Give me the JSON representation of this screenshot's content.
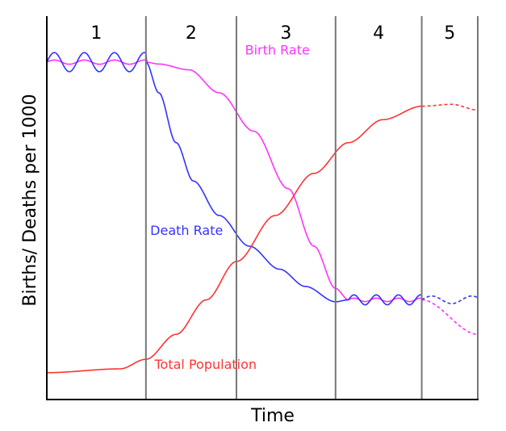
{
  "colors": {
    "birth_rate": "#ff33ff",
    "death_rate": "#3333ff",
    "total_population": "#ff3333",
    "frame": "#000000",
    "dividers": "#777777"
  },
  "chart_data": {
    "type": "line",
    "xlabel": "Time",
    "ylabel": "Births/ Deaths per 1000",
    "stages": [
      "1",
      "2",
      "3",
      "4",
      "5"
    ],
    "stage_boundaries": [
      0,
      0.23,
      0.44,
      0.67,
      0.87,
      1.0
    ],
    "grid": false,
    "legend": "inline labels",
    "series": [
      {
        "key": "birth_rate",
        "name": "Birth Rate",
        "label_at": [
          0.46,
          0.9
        ],
        "points": [
          [
            0.0,
            0.88
          ],
          [
            0.23,
            0.88
          ],
          [
            0.26,
            0.875
          ],
          [
            0.33,
            0.86
          ],
          [
            0.4,
            0.8
          ],
          [
            0.48,
            0.7
          ],
          [
            0.56,
            0.55
          ],
          [
            0.62,
            0.4
          ],
          [
            0.67,
            0.29
          ],
          [
            0.7,
            0.26
          ],
          [
            0.87,
            0.26
          ]
        ],
        "oscillate": [
          [
            0.0,
            0.23,
            0.0055
          ],
          [
            0.7,
            0.87,
            0.0045
          ]
        ],
        "dashed_tail": [
          [
            0.87,
            0.26
          ],
          [
            1.0,
            0.17
          ]
        ]
      },
      {
        "key": "death_rate",
        "name": "Death Rate",
        "label_at": [
          0.24,
          0.43
        ],
        "points": [
          [
            0.0,
            0.88
          ],
          [
            0.23,
            0.88
          ],
          [
            0.26,
            0.8
          ],
          [
            0.3,
            0.67
          ],
          [
            0.34,
            0.57
          ],
          [
            0.4,
            0.48
          ],
          [
            0.47,
            0.4
          ],
          [
            0.54,
            0.34
          ],
          [
            0.6,
            0.295
          ],
          [
            0.67,
            0.255
          ],
          [
            0.7,
            0.26
          ],
          [
            0.87,
            0.26
          ]
        ],
        "oscillate": [
          [
            0.0,
            0.23,
            0.025
          ],
          [
            0.7,
            0.87,
            0.013
          ]
        ],
        "dashed_tail": [
          [
            0.87,
            0.26
          ],
          [
            1.0,
            0.26
          ]
        ]
      },
      {
        "key": "total_population",
        "name": "Total Population",
        "label_at": [
          0.25,
          0.08
        ],
        "points": [
          [
            0.0,
            0.07
          ],
          [
            0.17,
            0.08
          ],
          [
            0.23,
            0.105
          ],
          [
            0.3,
            0.17
          ],
          [
            0.37,
            0.26
          ],
          [
            0.44,
            0.36
          ],
          [
            0.53,
            0.48
          ],
          [
            0.62,
            0.59
          ],
          [
            0.7,
            0.67
          ],
          [
            0.78,
            0.73
          ],
          [
            0.87,
            0.765
          ]
        ],
        "oscillate": [],
        "dashed_tail": [
          [
            0.87,
            0.765
          ],
          [
            0.94,
            0.77
          ],
          [
            1.0,
            0.755
          ]
        ]
      }
    ]
  }
}
